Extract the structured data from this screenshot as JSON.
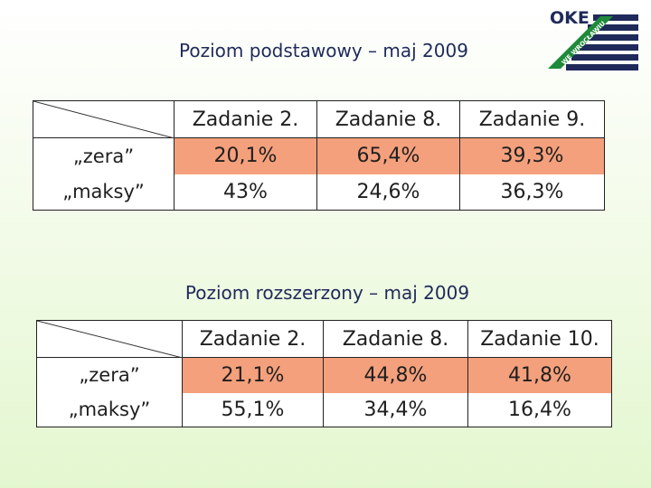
{
  "logo": {
    "text": "OKE",
    "subtext": "WE WROCŁAWIU"
  },
  "section1": {
    "title": "Poziom podstawowy – maj 2009",
    "headers": [
      "Zadanie 2.",
      "Zadanie 8.",
      "Zadanie 9."
    ],
    "rows": [
      {
        "label": "„zera”",
        "values": [
          "20,1%",
          "65,4%",
          "39,3%"
        ]
      },
      {
        "label": "„maksy”",
        "values": [
          "43%",
          "24,6%",
          "36,3%"
        ]
      }
    ]
  },
  "section2": {
    "title": "Poziom rozszerzony – maj 2009",
    "headers": [
      "Zadanie 2.",
      "Zadanie 8.",
      "Zadanie 10."
    ],
    "rows": [
      {
        "label": "„zera”",
        "values": [
          "21,1%",
          "44,8%",
          "41,8%"
        ]
      },
      {
        "label": "„maksy”",
        "values": [
          "55,1%",
          "34,4%",
          "16,4%"
        ]
      }
    ]
  },
  "colors": {
    "highlight": "#f4a07c",
    "title": "#1f2a5a",
    "logo_green": "#1f8a3a",
    "logo_navy": "#1f2a5a"
  }
}
